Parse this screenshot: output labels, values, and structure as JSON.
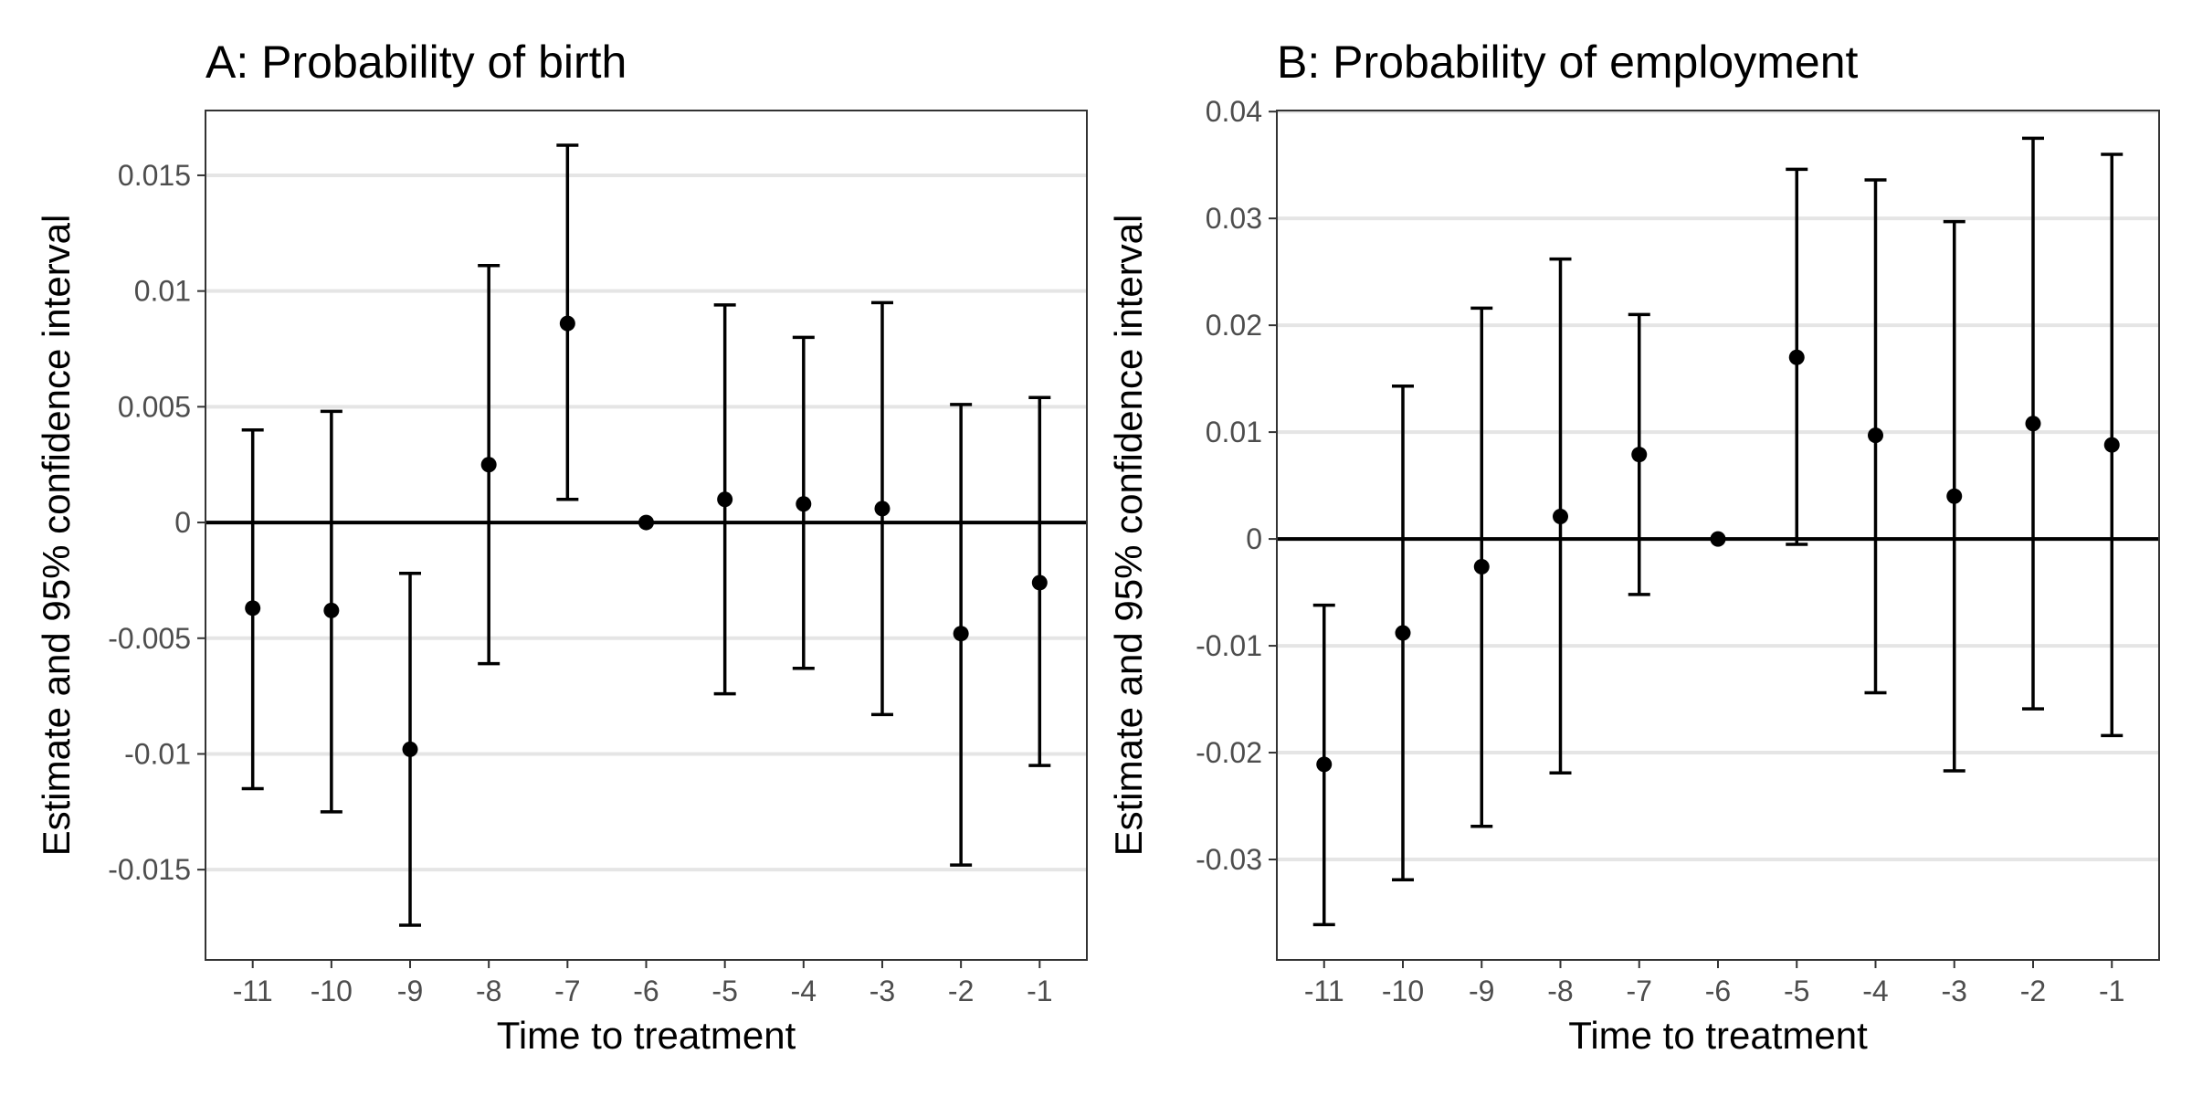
{
  "chart_data": [
    {
      "type": "scatter",
      "title": "A: Probability of birth",
      "xlabel": "Time to treatment",
      "ylabel": "Estimate and 95% confidence interval",
      "categories": [
        "-11",
        "-10",
        "-9",
        "-8",
        "-7",
        "-6",
        "-5",
        "-4",
        "-3",
        "-2",
        "-1"
      ],
      "estimates": [
        -0.0037,
        -0.0038,
        -0.0098,
        0.0025,
        0.0086,
        0.0,
        0.001,
        0.0008,
        0.0006,
        -0.0048,
        -0.0026
      ],
      "ci_lower": [
        -0.0115,
        -0.0125,
        -0.0174,
        -0.0061,
        0.001,
        0.0,
        -0.0074,
        -0.0063,
        -0.0083,
        -0.0148,
        -0.0105
      ],
      "ci_upper": [
        0.004,
        0.0048,
        -0.0022,
        0.0111,
        0.0163,
        0.0,
        0.0094,
        0.008,
        0.0095,
        0.0051,
        0.0054
      ],
      "ylim": [
        -0.0189,
        0.0178
      ],
      "yticks": [
        -0.015,
        -0.01,
        -0.005,
        0,
        0.005,
        0.01,
        0.015
      ],
      "ytick_labels": [
        "-0.015",
        "-0.01",
        "-0.005",
        "0",
        "0.005",
        "0.01",
        "0.015"
      ],
      "reference_line": 0,
      "grid": "horizontal major"
    },
    {
      "type": "scatter",
      "title": "B: Probability of employment",
      "xlabel": "Time to treatment",
      "ylabel": "Estimate and 95% confidence interval",
      "categories": [
        "-11",
        "-10",
        "-9",
        "-8",
        "-7",
        "-6",
        "-5",
        "-4",
        "-3",
        "-2",
        "-1"
      ],
      "estimates": [
        -0.0211,
        -0.0088,
        -0.0026,
        0.0021,
        0.0079,
        0.0,
        0.017,
        0.0097,
        0.004,
        0.0108,
        0.0088
      ],
      "ci_lower": [
        -0.0361,
        -0.0319,
        -0.0269,
        -0.0219,
        -0.0052,
        0.0,
        -0.0005,
        -0.0144,
        -0.0217,
        -0.0159,
        -0.0184
      ],
      "ci_upper": [
        -0.0062,
        0.0143,
        0.0216,
        0.0262,
        0.021,
        0.0,
        0.0346,
        0.0336,
        0.0297,
        0.0375,
        0.036
      ],
      "ylim": [
        -0.0394,
        0.0401
      ],
      "yticks": [
        -0.03,
        -0.02,
        -0.01,
        0,
        0.01,
        0.02,
        0.03,
        0.04
      ],
      "ytick_labels": [
        "-0.03",
        "-0.02",
        "-0.01",
        "0",
        "0.01",
        "0.02",
        "0.03",
        "0.04"
      ],
      "reference_line": 0,
      "grid": "horizontal major"
    }
  ]
}
